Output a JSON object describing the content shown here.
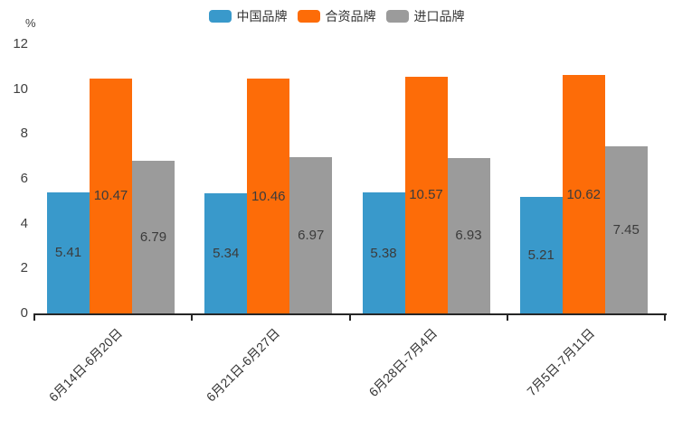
{
  "chart_data": {
    "type": "bar",
    "title": "",
    "unit_label": "%",
    "categories": [
      "6月14日-6月20日",
      "6月21日-6月27日",
      "6月28日-7月4日",
      "7月5日-7月11日"
    ],
    "series": [
      {
        "name": "中国品牌",
        "color": "#3999cb",
        "values": [
          5.41,
          5.34,
          5.38,
          5.21
        ]
      },
      {
        "name": "合资品牌",
        "color": "#fd6c08",
        "values": [
          10.47,
          10.46,
          10.57,
          10.62
        ]
      },
      {
        "name": "进口品牌",
        "color": "#9b9b9b",
        "values": [
          6.79,
          6.97,
          6.93,
          7.45
        ]
      }
    ],
    "ylim": [
      0,
      12
    ],
    "yticks": [
      0,
      2,
      4,
      6,
      8,
      10,
      12
    ],
    "grid": false,
    "legend_position": "top",
    "data_labels": true,
    "value_decimals": 2,
    "colors": {
      "axis": "#262626",
      "tick_text": "#404040",
      "value_label": "#3b3b3b",
      "category_text": "#333333"
    }
  }
}
